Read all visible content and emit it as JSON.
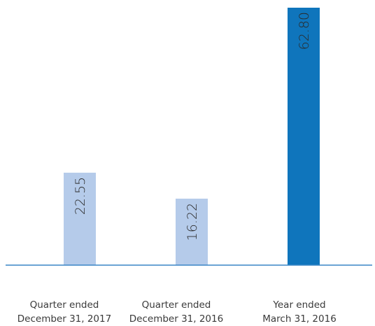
{
  "chart_data": {
    "type": "bar",
    "categories": [
      [
        "Quarter ended",
        "December 31, 2017"
      ],
      [
        "Quarter ended",
        "December 31, 2016"
      ],
      [
        "Year ended",
        "March 31, 2016"
      ]
    ],
    "values": [
      22.55,
      16.22,
      62.8
    ],
    "value_labels": [
      "22.55",
      "16.22",
      "62.80"
    ],
    "colors": [
      "#b5cbea",
      "#b5cbea",
      "#0f75bc"
    ],
    "axis_color": "#3a86c6",
    "ylim": [
      0,
      62.8
    ],
    "title": "",
    "xlabel": "",
    "ylabel": "",
    "grid": false,
    "legend": "none"
  }
}
